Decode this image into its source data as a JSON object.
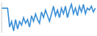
{
  "chart_data": {
    "type": "line",
    "categories": [
      null,
      null,
      null,
      null,
      null,
      null,
      null,
      null,
      null,
      null,
      null,
      null,
      null,
      null,
      null,
      null,
      null,
      null,
      null,
      null,
      null,
      null,
      null,
      null,
      null,
      null,
      null,
      null,
      null,
      null,
      null,
      null,
      null,
      null,
      null,
      null,
      null,
      null,
      null,
      null,
      null,
      null,
      null,
      null,
      null,
      null,
      null,
      null
    ],
    "values": [
      36,
      36,
      36,
      36,
      16,
      22,
      12,
      24,
      14,
      22,
      18,
      26,
      20,
      24,
      16,
      28,
      22,
      30,
      24,
      20,
      32,
      26,
      34,
      28,
      22,
      30,
      38,
      28,
      34,
      26,
      36,
      30,
      38,
      26,
      34,
      40,
      30,
      36,
      28,
      38,
      32,
      40,
      30,
      36,
      34,
      38,
      32,
      36
    ],
    "color": "#3a8fd6",
    "ylim": [
      10,
      42
    ],
    "tick_labels": false
  }
}
